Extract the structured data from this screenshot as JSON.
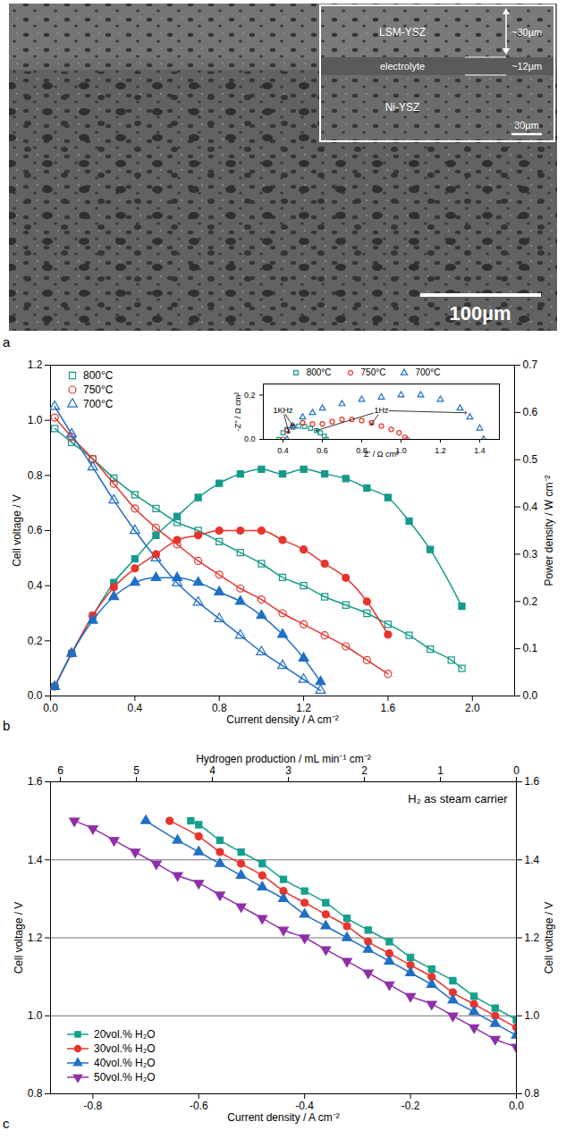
{
  "chart_data": [
    {
      "type": "image",
      "label": "a",
      "scale_bar": "100µm",
      "inset": {
        "layers": [
          "LSM-YSZ",
          "electrolyte",
          "Ni-YSZ"
        ],
        "thickness_labels": [
          "~30µm",
          "~12µm"
        ],
        "scale_bar": "30µm"
      }
    },
    {
      "type": "line",
      "label": "b",
      "xlabel": "Current density / A cm⁻²",
      "ylabel": "Cell voltage / V",
      "y2label": "Power density / W cm⁻²",
      "xlim": [
        0,
        2.2
      ],
      "xticks": [
        {
          "value": 0,
          "label": "0.0"
        },
        0.4,
        0.8,
        1.2,
        1.6,
        {
          "value": 2,
          "label": "2.0"
        }
      ],
      "ylim": [
        0,
        1.2
      ],
      "yticks": [
        {
          "value": 0,
          "label": "0.0"
        },
        0.2,
        0.4,
        0.6,
        0.8,
        {
          "value": 1,
          "label": "1.0"
        },
        1.2
      ],
      "y2lim": [
        0,
        0.7
      ],
      "y2ticks": [
        {
          "value": 0,
          "label": "0.0"
        },
        0.1,
        0.2,
        0.3,
        0.4,
        0.5,
        0.6,
        0.7
      ],
      "legend": "top-left",
      "series": [
        {
          "name": "800°C",
          "color": "#17998a",
          "marker": "open_square",
          "line_style": "solid",
          "x": [
            0.02,
            0.1,
            0.2,
            0.3,
            0.4,
            0.5,
            0.6,
            0.7,
            0.8,
            0.9,
            1.0,
            1.1,
            1.2,
            1.3,
            1.4,
            1.5,
            1.6,
            1.7,
            1.8,
            1.9,
            1.95
          ],
          "values": [
            0.97,
            0.92,
            0.86,
            0.79,
            0.73,
            0.68,
            0.63,
            0.6,
            0.56,
            0.52,
            0.48,
            0.43,
            0.4,
            0.36,
            0.33,
            0.3,
            0.26,
            0.22,
            0.17,
            0.13,
            0.1
          ]
        },
        {
          "name": "750°C",
          "color": "#e8342c",
          "marker": "open_circle",
          "line_style": "solid",
          "x": [
            0.02,
            0.1,
            0.2,
            0.3,
            0.4,
            0.5,
            0.6,
            0.7,
            0.8,
            0.9,
            1.0,
            1.1,
            1.2,
            1.3,
            1.4,
            1.5,
            1.6
          ],
          "values": [
            1.01,
            0.94,
            0.86,
            0.77,
            0.68,
            0.61,
            0.55,
            0.49,
            0.44,
            0.39,
            0.35,
            0.3,
            0.26,
            0.22,
            0.18,
            0.13,
            0.08
          ]
        },
        {
          "name": "700°C",
          "color": "#1f6fc5",
          "marker": "open_triangle",
          "line_style": "solid",
          "x": [
            0.02,
            0.1,
            0.2,
            0.3,
            0.4,
            0.5,
            0.6,
            0.7,
            0.8,
            0.9,
            1.0,
            1.1,
            1.2,
            1.28
          ],
          "values": [
            1.05,
            0.95,
            0.83,
            0.71,
            0.6,
            0.5,
            0.41,
            0.34,
            0.28,
            0.22,
            0.16,
            0.11,
            0.06,
            0.02
          ]
        },
        {
          "name": "800°C",
          "color": "#17998a",
          "marker": "square",
          "line_style": "solid",
          "axis": "y2",
          "x": [
            0.02,
            0.1,
            0.2,
            0.3,
            0.4,
            0.5,
            0.6,
            0.7,
            0.8,
            0.9,
            1.0,
            1.1,
            1.2,
            1.3,
            1.4,
            1.5,
            1.6,
            1.7,
            1.8,
            1.95
          ],
          "values": [
            0.02,
            0.09,
            0.17,
            0.24,
            0.29,
            0.34,
            0.38,
            0.42,
            0.45,
            0.47,
            0.48,
            0.47,
            0.48,
            0.47,
            0.46,
            0.44,
            0.42,
            0.37,
            0.31,
            0.19
          ]
        },
        {
          "name": "750°C",
          "color": "#e8342c",
          "marker": "circle",
          "line_style": "solid",
          "axis": "y2",
          "x": [
            0.02,
            0.1,
            0.2,
            0.3,
            0.4,
            0.5,
            0.6,
            0.7,
            0.8,
            0.9,
            1.0,
            1.1,
            1.2,
            1.3,
            1.4,
            1.5,
            1.6
          ],
          "values": [
            0.02,
            0.09,
            0.17,
            0.23,
            0.27,
            0.3,
            0.33,
            0.34,
            0.35,
            0.35,
            0.35,
            0.33,
            0.31,
            0.28,
            0.25,
            0.2,
            0.13
          ]
        },
        {
          "name": "700°C",
          "color": "#1f6fc5",
          "marker": "triangle",
          "line_style": "solid",
          "axis": "y2",
          "x": [
            0.02,
            0.1,
            0.2,
            0.3,
            0.4,
            0.5,
            0.6,
            0.7,
            0.8,
            0.9,
            1.0,
            1.1,
            1.2,
            1.28
          ],
          "values": [
            0.02,
            0.09,
            0.16,
            0.21,
            0.24,
            0.25,
            0.25,
            0.24,
            0.22,
            0.2,
            0.17,
            0.13,
            0.08,
            0.03
          ]
        }
      ],
      "inset": {
        "type": "scatter",
        "xlabel": "Z' / Ω cm²",
        "ylabel": "-Z'' / Ω cm²",
        "xlim": [
          0.3,
          1.5
        ],
        "xticks": [
          0.4,
          0.6,
          0.8,
          {
            "value": 1,
            "label": "1.0"
          },
          1.2,
          1.4
        ],
        "ylim": [
          0,
          0.25
        ],
        "yticks": [
          {
            "value": 0,
            "label": "0.0"
          },
          0.2
        ],
        "legend": "top",
        "series": [
          {
            "name": "800°C",
            "color": "#17998a",
            "marker": "open_square",
            "x": [
              0.38,
              0.4,
              0.42,
              0.45,
              0.48,
              0.51,
              0.54,
              0.57,
              0.59,
              0.61,
              0.62
            ],
            "values": [
              0,
              0.03,
              0.045,
              0.055,
              0.06,
              0.058,
              0.05,
              0.04,
              0.03,
              0.015,
              0
            ]
          },
          {
            "name": "750°C",
            "color": "#e8342c",
            "marker": "open_circle",
            "x": [
              0.4,
              0.42,
              0.45,
              0.5,
              0.55,
              0.6,
              0.65,
              0.7,
              0.75,
              0.8,
              0.85,
              0.9,
              0.95,
              0.99,
              1.02,
              1.03
            ],
            "values": [
              0,
              0.04,
              0.06,
              0.075,
              0.07,
              0.07,
              0.08,
              0.09,
              0.09,
              0.085,
              0.075,
              0.06,
              0.045,
              0.03,
              0.01,
              0
            ]
          },
          {
            "name": "700°C",
            "color": "#1f6fc5",
            "marker": "open_triangle",
            "x": [
              0.42,
              0.45,
              0.5,
              0.55,
              0.6,
              0.7,
              0.8,
              0.9,
              1.0,
              1.1,
              1.2,
              1.3,
              1.35,
              1.4,
              1.42
            ],
            "values": [
              0,
              0.06,
              0.1,
              0.12,
              0.14,
              0.16,
              0.18,
              0.19,
              0.2,
              0.2,
              0.18,
              0.14,
              0.1,
              0.05,
              0
            ]
          }
        ],
        "annotations": [
          {
            "text": "1KHz",
            "x": 0.4,
            "y": 0.13,
            "points": [
              [
                0.43,
                0.03
              ],
              [
                0.45,
                0.06
              ]
            ]
          },
          {
            "text": "1Hz",
            "x": 0.9,
            "y": 0.13,
            "points": [
              [
                0.57,
                0.04
              ],
              [
                0.85,
                0.07
              ],
              [
                1.33,
                0.12
              ]
            ]
          }
        ]
      }
    },
    {
      "type": "line",
      "label": "c",
      "xlabel": "Current density / A cm⁻²",
      "ylabel": "Cell voltage / V",
      "y2label": "Cell voltage / V",
      "x2label": "Hydrogen production / mL min⁻¹ cm⁻²",
      "xlim": [
        -0.88,
        0
      ],
      "xticks": [
        -0.8,
        -0.6,
        -0.4,
        -0.2,
        {
          "value": 0,
          "label": "0.0"
        }
      ],
      "x2lim": [
        6.13,
        0
      ],
      "x2ticks": [
        0,
        1,
        2,
        3,
        4,
        5,
        6
      ],
      "ylim": [
        0.8,
        1.6
      ],
      "yticks": [
        0.8,
        {
          "value": 1,
          "label": "1.0"
        },
        1.2,
        1.4,
        1.6
      ],
      "y2lim": [
        0.8,
        1.6
      ],
      "y2ticks": [
        0.8,
        {
          "value": 1,
          "label": "1.0"
        },
        1.2,
        1.4,
        1.6
      ],
      "grid": true,
      "legend": "bottom-left",
      "annotations": [
        "H₂ as steam carrier"
      ],
      "series": [
        {
          "name": "20vol.% H₂O",
          "color": "#14a08c",
          "marker": "square",
          "line_style": "solid",
          "x": [
            0,
            -0.04,
            -0.08,
            -0.12,
            -0.16,
            -0.2,
            -0.24,
            -0.28,
            -0.32,
            -0.36,
            -0.4,
            -0.44,
            -0.48,
            -0.52,
            -0.56,
            -0.6,
            -0.615
          ],
          "values": [
            0.99,
            1.02,
            1.05,
            1.09,
            1.12,
            1.15,
            1.19,
            1.22,
            1.25,
            1.29,
            1.32,
            1.35,
            1.39,
            1.42,
            1.45,
            1.49,
            1.5
          ]
        },
        {
          "name": "30vol.% H₂O",
          "color": "#e8342c",
          "marker": "circle",
          "line_style": "solid",
          "x": [
            0,
            -0.04,
            -0.08,
            -0.12,
            -0.16,
            -0.2,
            -0.24,
            -0.28,
            -0.32,
            -0.36,
            -0.4,
            -0.44,
            -0.48,
            -0.52,
            -0.56,
            -0.6,
            -0.655
          ],
          "values": [
            0.97,
            1.0,
            1.03,
            1.06,
            1.1,
            1.13,
            1.16,
            1.19,
            1.23,
            1.26,
            1.29,
            1.32,
            1.36,
            1.39,
            1.42,
            1.46,
            1.5
          ]
        },
        {
          "name": "40vol.% H₂O",
          "color": "#1f6fc5",
          "marker": "triangle",
          "line_style": "solid",
          "x": [
            0,
            -0.04,
            -0.08,
            -0.12,
            -0.16,
            -0.2,
            -0.24,
            -0.28,
            -0.32,
            -0.36,
            -0.4,
            -0.44,
            -0.48,
            -0.52,
            -0.56,
            -0.6,
            -0.64,
            -0.7
          ],
          "values": [
            0.95,
            0.98,
            1.01,
            1.04,
            1.08,
            1.11,
            1.14,
            1.17,
            1.2,
            1.23,
            1.26,
            1.3,
            1.33,
            1.36,
            1.39,
            1.42,
            1.45,
            1.5
          ]
        },
        {
          "name": "50vol.% H₂O",
          "color": "#8e2fa8",
          "marker": "triangle_down",
          "line_style": "solid",
          "x": [
            0,
            -0.04,
            -0.08,
            -0.12,
            -0.16,
            -0.2,
            -0.24,
            -0.28,
            -0.32,
            -0.36,
            -0.4,
            -0.44,
            -0.48,
            -0.52,
            -0.56,
            -0.6,
            -0.64,
            -0.68,
            -0.72,
            -0.76,
            -0.8,
            -0.835
          ],
          "values": [
            0.92,
            0.94,
            0.97,
            1.0,
            1.03,
            1.05,
            1.08,
            1.11,
            1.14,
            1.17,
            1.2,
            1.22,
            1.25,
            1.28,
            1.31,
            1.34,
            1.36,
            1.39,
            1.42,
            1.45,
            1.48,
            1.5
          ]
        }
      ]
    }
  ]
}
